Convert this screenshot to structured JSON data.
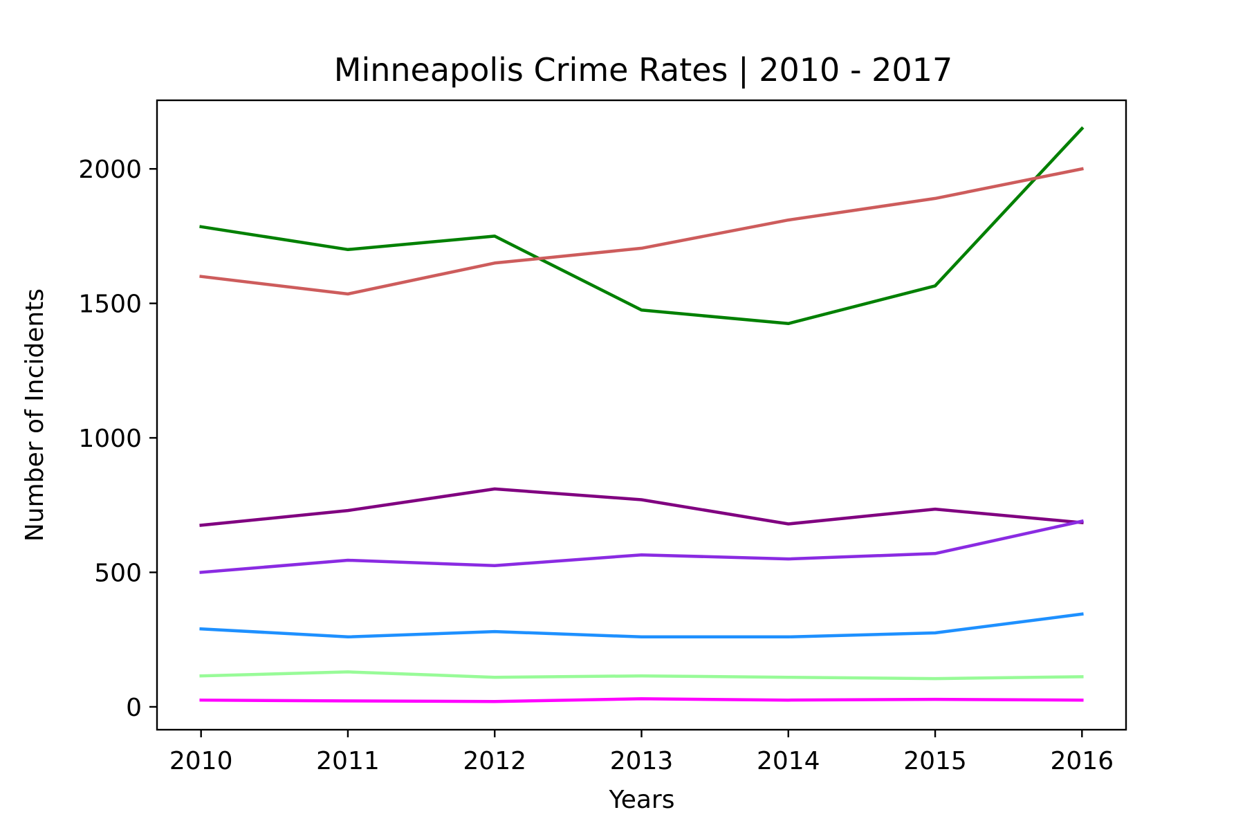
{
  "chart_data": {
    "type": "line",
    "title": "Minneapolis Crime Rates | 2010 - 2017",
    "xlabel": "Years",
    "ylabel": "Number of Incidents",
    "x": [
      "2010",
      "2011",
      "2012",
      "2013",
      "2014",
      "2015",
      "2016"
    ],
    "xlim": [
      2009.7,
      2016.3
    ],
    "ylim": [
      -85,
      2255
    ],
    "yticks": [
      0,
      500,
      1000,
      1500,
      2000
    ],
    "grid": false,
    "legend": "none",
    "series": [
      {
        "color": "#008000",
        "values": [
          1785,
          1700,
          1750,
          1475,
          1425,
          1565,
          2150
        ]
      },
      {
        "color": "#cd5c5c",
        "values": [
          1600,
          1535,
          1650,
          1705,
          1810,
          1890,
          2000
        ]
      },
      {
        "color": "#800080",
        "values": [
          675,
          730,
          810,
          770,
          680,
          735,
          685
        ]
      },
      {
        "color": "#8a2be2",
        "values": [
          500,
          545,
          525,
          565,
          550,
          570,
          690
        ]
      },
      {
        "color": "#1e90ff",
        "values": [
          290,
          260,
          280,
          260,
          260,
          275,
          345
        ]
      },
      {
        "color": "#98fb98",
        "values": [
          115,
          130,
          110,
          115,
          110,
          105,
          112
        ]
      },
      {
        "color": "#ff00ff",
        "values": [
          25,
          22,
          20,
          30,
          25,
          28,
          25
        ]
      }
    ]
  }
}
